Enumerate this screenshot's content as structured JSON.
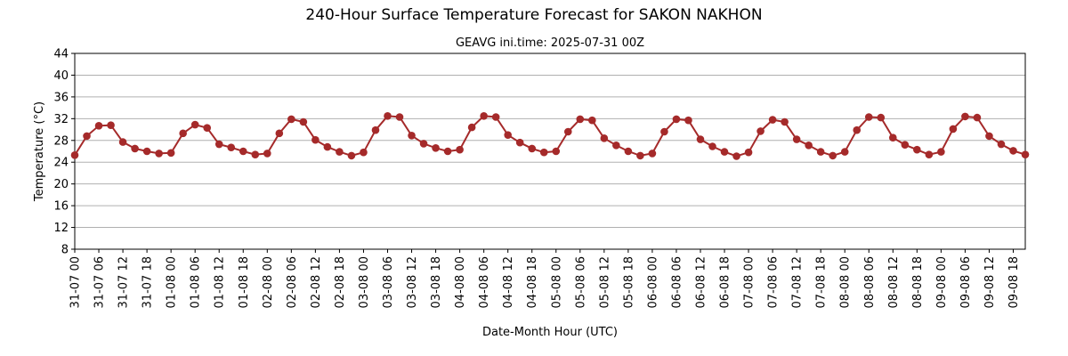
{
  "chart_data": {
    "type": "line",
    "title": "240-Hour Surface Temperature Forecast for SAKON NAKHON",
    "subtitle": "GEAVG ini.time: 2025-07-31 00Z",
    "xlabel": "Date-Month Hour (UTC)",
    "ylabel": "Temperature (°C)",
    "ylim": [
      8,
      44
    ],
    "yticks": [
      8,
      12,
      16,
      20,
      24,
      28,
      32,
      36,
      40,
      44
    ],
    "grid": "horizontal",
    "line_color": "#a52a2a",
    "x": [
      "31-07 00",
      "31-07 03",
      "31-07 06",
      "31-07 09",
      "31-07 12",
      "31-07 15",
      "31-07 18",
      "31-07 21",
      "01-08 00",
      "01-08 03",
      "01-08 06",
      "01-08 09",
      "01-08 12",
      "01-08 15",
      "01-08 18",
      "01-08 21",
      "02-08 00",
      "02-08 03",
      "02-08 06",
      "02-08 09",
      "02-08 12",
      "02-08 15",
      "02-08 18",
      "02-08 21",
      "03-08 00",
      "03-08 03",
      "03-08 06",
      "03-08 09",
      "03-08 12",
      "03-08 15",
      "03-08 18",
      "03-08 21",
      "04-08 00",
      "04-08 03",
      "04-08 06",
      "04-08 09",
      "04-08 12",
      "04-08 15",
      "04-08 18",
      "04-08 21",
      "05-08 00",
      "05-08 03",
      "05-08 06",
      "05-08 09",
      "05-08 12",
      "05-08 15",
      "05-08 18",
      "05-08 21",
      "06-08 00",
      "06-08 03",
      "06-08 06",
      "06-08 09",
      "06-08 12",
      "06-08 15",
      "06-08 18",
      "06-08 21",
      "07-08 00",
      "07-08 03",
      "07-08 06",
      "07-08 09",
      "07-08 12",
      "07-08 15",
      "07-08 18",
      "07-08 21",
      "08-08 00",
      "08-08 03",
      "08-08 06",
      "08-08 09",
      "08-08 12",
      "08-08 15",
      "08-08 18",
      "08-08 21",
      "09-08 00",
      "09-08 03",
      "09-08 06",
      "09-08 09",
      "09-08 12",
      "09-08 15",
      "09-08 18",
      "09-08 21"
    ],
    "xtick_labels": [
      "31-07 00",
      "31-07 06",
      "31-07 12",
      "31-07 18",
      "01-08 00",
      "01-08 06",
      "01-08 12",
      "01-08 18",
      "02-08 00",
      "02-08 06",
      "02-08 12",
      "02-08 18",
      "03-08 00",
      "03-08 06",
      "03-08 12",
      "03-08 18",
      "04-08 00",
      "04-08 06",
      "04-08 12",
      "04-08 18",
      "05-08 00",
      "05-08 06",
      "05-08 12",
      "05-08 18",
      "06-08 00",
      "06-08 06",
      "06-08 12",
      "06-08 18",
      "07-08 00",
      "07-08 06",
      "07-08 12",
      "07-08 18",
      "08-08 00",
      "08-08 06",
      "08-08 12",
      "08-08 18",
      "09-08 00",
      "09-08 06",
      "09-08 12",
      "09-08 18"
    ],
    "values": [
      25.3,
      28.8,
      30.7,
      30.8,
      27.7,
      26.5,
      26.0,
      25.6,
      25.7,
      29.3,
      30.9,
      30.3,
      27.3,
      26.7,
      26.0,
      25.4,
      25.6,
      29.3,
      31.9,
      31.4,
      28.1,
      26.8,
      25.9,
      25.2,
      25.8,
      29.9,
      32.5,
      32.3,
      28.9,
      27.4,
      26.6,
      26.0,
      26.3,
      30.4,
      32.5,
      32.3,
      29.0,
      27.6,
      26.5,
      25.8,
      26.0,
      29.6,
      31.9,
      31.7,
      28.4,
      27.1,
      26.0,
      25.2,
      25.6,
      29.6,
      31.9,
      31.7,
      28.2,
      26.9,
      25.9,
      25.1,
      25.8,
      29.7,
      31.8,
      31.4,
      28.2,
      27.1,
      25.9,
      25.2,
      25.9,
      29.9,
      32.3,
      32.2,
      28.5,
      27.2,
      26.3,
      25.4,
      25.9,
      30.1,
      32.4,
      32.2,
      28.8,
      27.3,
      26.1,
      25.4
    ]
  }
}
